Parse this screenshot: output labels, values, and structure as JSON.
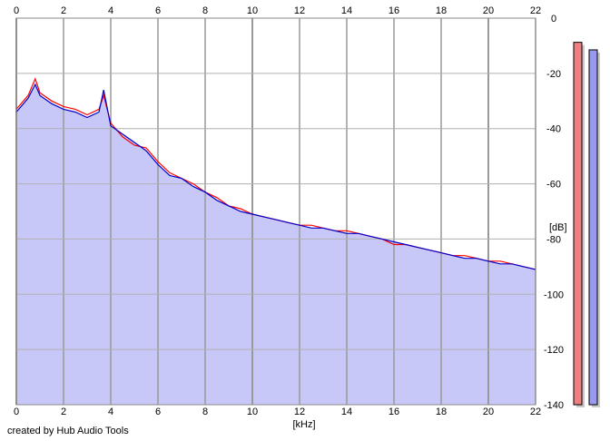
{
  "app": {
    "credit": "created by Hub Audio Tools"
  },
  "chart_data": {
    "type": "area",
    "xlabel": "[kHz]",
    "ylabel": "[dB]",
    "xlim": [
      0,
      22
    ],
    "ylim": [
      -140,
      0
    ],
    "x_ticks": [
      "0",
      "2",
      "4",
      "6",
      "8",
      "10",
      "12",
      "14",
      "16",
      "18",
      "20",
      "22"
    ],
    "y_ticks": [
      "0",
      "-20",
      "-40",
      "-60",
      "-80",
      "-100",
      "-120",
      "-140"
    ],
    "grid": true,
    "series": [
      {
        "color": "#ff0000",
        "x": [
          0,
          0.5,
          0.8,
          1.0,
          1.5,
          2.0,
          2.5,
          3.0,
          3.5,
          3.7,
          4.0,
          4.5,
          5.0,
          5.5,
          6.0,
          6.5,
          7.0,
          7.5,
          8.0,
          8.5,
          9.0,
          9.5,
          10.0,
          10.5,
          11.0,
          11.5,
          12.0,
          12.5,
          13.0,
          13.5,
          14.0,
          14.5,
          15.0,
          15.5,
          16.0,
          16.5,
          17.0,
          17.5,
          18.0,
          18.5,
          19.0,
          19.5,
          20.0,
          20.5,
          21.0,
          21.5,
          22.0
        ],
        "y": [
          -33,
          -28,
          -22,
          -27,
          -30,
          -32,
          -33,
          -35,
          -33,
          -28,
          -38,
          -43,
          -46,
          -47,
          -52,
          -56,
          -58,
          -60,
          -63,
          -65,
          -68,
          -69,
          -71,
          -72,
          -73,
          -74,
          -75,
          -75,
          -76,
          -77,
          -77,
          -78,
          -79,
          -80,
          -82,
          -82,
          -83,
          -84,
          -85,
          -86,
          -86,
          -87,
          -88,
          -88,
          -89,
          -90,
          -91
        ]
      },
      {
        "color": "#0000cc",
        "x": [
          0,
          0.5,
          0.8,
          1.0,
          1.5,
          2.0,
          2.5,
          3.0,
          3.5,
          3.7,
          4.0,
          4.5,
          5.0,
          5.5,
          6.0,
          6.5,
          7.0,
          7.5,
          8.0,
          8.5,
          9.0,
          9.5,
          10.0,
          10.5,
          11.0,
          11.5,
          12.0,
          12.5,
          13.0,
          13.5,
          14.0,
          14.5,
          15.0,
          15.5,
          16.0,
          16.5,
          17.0,
          17.5,
          18.0,
          18.5,
          19.0,
          19.5,
          20.0,
          20.5,
          21.0,
          21.5,
          22.0
        ],
        "y": [
          -34,
          -29,
          -24,
          -28,
          -31,
          -33,
          -34,
          -36,
          -34,
          -26,
          -39,
          -42,
          -45,
          -48,
          -53,
          -57,
          -58,
          -61,
          -63,
          -66,
          -68,
          -70,
          -71,
          -72,
          -73,
          -74,
          -75,
          -76,
          -76,
          -77,
          -78,
          -78,
          -79,
          -80,
          -81,
          -82,
          -83,
          -84,
          -85,
          -86,
          -87,
          -87,
          -88,
          -89,
          -89,
          -90,
          -91
        ]
      }
    ],
    "level_meters": [
      {
        "color": "#f08080",
        "level": 0.96
      },
      {
        "color": "#9999ee",
        "level": 0.94
      }
    ],
    "fill_color": "#c8c8f8"
  }
}
